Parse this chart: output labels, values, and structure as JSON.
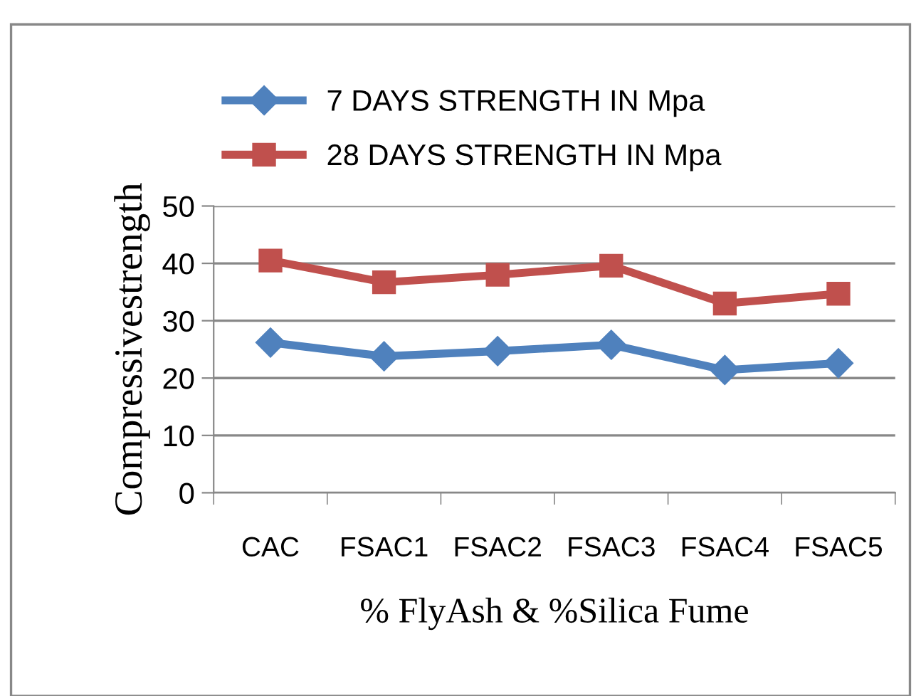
{
  "chart_data": {
    "type": "line",
    "xlabel": "% FlyAsh & %Silica Fume",
    "ylabel": "Compressivestrength",
    "categories": [
      "CAC",
      "FSAC1",
      "FSAC2",
      "FSAC3",
      "FSAC4",
      "FSAC5"
    ],
    "series": [
      {
        "name": "7 DAYS STRENGTH IN Mpa",
        "color": "#4f81bd",
        "marker": "diamond",
        "values": [
          26.2,
          23.8,
          24.7,
          25.8,
          21.4,
          22.6
        ]
      },
      {
        "name": "28 DAYS STRENGTH IN Mpa",
        "color": "#c0504d",
        "marker": "square",
        "values": [
          40.5,
          36.7,
          38.0,
          39.6,
          33.0,
          34.7
        ]
      }
    ],
    "ylim": [
      0,
      50
    ],
    "yticks": [
      0,
      10,
      20,
      30,
      40,
      50
    ],
    "grid": "y",
    "legend": "top",
    "line_style": "solid"
  }
}
